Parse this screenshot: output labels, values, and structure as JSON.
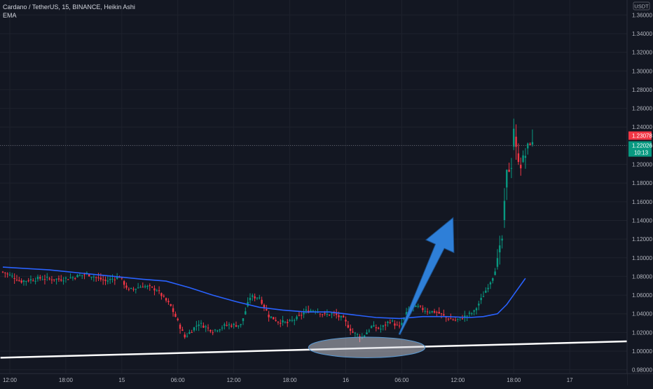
{
  "legend": {
    "symbol_line": "Cardano / TetherUS, 15, BINANCE, Heikin Ashi",
    "indicator": "EMA"
  },
  "price_scale": {
    "currency_label": "USDT",
    "ticks": [
      "0.98000",
      "1.00000",
      "1.02000",
      "1.04000",
      "1.06000",
      "1.08000",
      "1.10000",
      "1.12000",
      "1.14000",
      "1.16000",
      "1.18000",
      "1.20000",
      "1.22000",
      "1.24000",
      "1.26000",
      "1.28000",
      "1.30000",
      "1.32000",
      "1.34000",
      "1.36000"
    ],
    "ylim": [
      0.976,
      1.376
    ],
    "high_label": {
      "value": 1.23078,
      "text": "1.23078",
      "color": "#f23645"
    },
    "last_label": {
      "value": 1.22026,
      "text": "1.22026",
      "timer": "10:13",
      "color": "#089981"
    }
  },
  "time_axis": {
    "labels": [
      {
        "text": "12:00",
        "idx": 3
      },
      {
        "text": "18:00",
        "idx": 27
      },
      {
        "text": "15",
        "idx": 51
      },
      {
        "text": "06:00",
        "idx": 75
      },
      {
        "text": "12:00",
        "idx": 99
      },
      {
        "text": "18:00",
        "idx": 123
      },
      {
        "text": "16",
        "idx": 147
      },
      {
        "text": "06:00",
        "idx": 171
      },
      {
        "text": "12:00",
        "idx": 195
      },
      {
        "text": "18:00",
        "idx": 219
      },
      {
        "text": "17",
        "idx": 243
      }
    ]
  },
  "colors": {
    "background": "#131722",
    "grid": "#1e222d",
    "up": "#089981",
    "down": "#f23645",
    "ema": "#2962ff",
    "arrow": "#2e7fd8",
    "support_line": "#ffffff",
    "ellipse_fill": "#d1d4dc",
    "ellipse_stroke": "#5b9bd5"
  },
  "chart_data": {
    "type": "candlestick",
    "title": "Cardano / TetherUS, 15, BINANCE, Heikin Ashi",
    "interval_minutes": 15,
    "ylim": [
      0.976,
      1.376
    ],
    "grid": true,
    "candle_anchors": [
      {
        "i": 0,
        "v": 1.085
      },
      {
        "i": 8,
        "v": 1.075
      },
      {
        "i": 16,
        "v": 1.078
      },
      {
        "i": 24,
        "v": 1.077
      },
      {
        "i": 30,
        "v": 1.079
      },
      {
        "i": 36,
        "v": 1.083
      },
      {
        "i": 44,
        "v": 1.075
      },
      {
        "i": 50,
        "v": 1.08
      },
      {
        "i": 54,
        "v": 1.065
      },
      {
        "i": 60,
        "v": 1.07
      },
      {
        "i": 66,
        "v": 1.066
      },
      {
        "i": 72,
        "v": 1.048
      },
      {
        "i": 78,
        "v": 1.015
      },
      {
        "i": 84,
        "v": 1.03
      },
      {
        "i": 90,
        "v": 1.022
      },
      {
        "i": 96,
        "v": 1.028
      },
      {
        "i": 102,
        "v": 1.028
      },
      {
        "i": 106,
        "v": 1.058
      },
      {
        "i": 110,
        "v": 1.058
      },
      {
        "i": 114,
        "v": 1.038
      },
      {
        "i": 118,
        "v": 1.032
      },
      {
        "i": 122,
        "v": 1.03
      },
      {
        "i": 126,
        "v": 1.035
      },
      {
        "i": 130,
        "v": 1.043
      },
      {
        "i": 134,
        "v": 1.044
      },
      {
        "i": 138,
        "v": 1.039
      },
      {
        "i": 142,
        "v": 1.04
      },
      {
        "i": 146,
        "v": 1.034
      },
      {
        "i": 150,
        "v": 1.02
      },
      {
        "i": 154,
        "v": 1.015
      },
      {
        "i": 158,
        "v": 1.026
      },
      {
        "i": 162,
        "v": 1.024
      },
      {
        "i": 166,
        "v": 1.033
      },
      {
        "i": 170,
        "v": 1.025
      },
      {
        "i": 174,
        "v": 1.045
      },
      {
        "i": 178,
        "v": 1.047
      },
      {
        "i": 182,
        "v": 1.043
      },
      {
        "i": 186,
        "v": 1.042
      },
      {
        "i": 190,
        "v": 1.036
      },
      {
        "i": 194,
        "v": 1.033
      },
      {
        "i": 198,
        "v": 1.037
      },
      {
        "i": 202,
        "v": 1.042
      },
      {
        "i": 206,
        "v": 1.06
      },
      {
        "i": 210,
        "v": 1.08
      },
      {
        "i": 212,
        "v": 1.095
      },
      {
        "i": 214,
        "v": 1.12
      },
      {
        "i": 216,
        "v": 1.19
      },
      {
        "i": 218,
        "v": 1.2
      },
      {
        "i": 219,
        "v": 1.24
      },
      {
        "i": 220,
        "v": 1.215
      },
      {
        "i": 222,
        "v": 1.2
      },
      {
        "i": 224,
        "v": 1.21
      },
      {
        "i": 226,
        "v": 1.225
      },
      {
        "i": 227,
        "v": 1.22
      }
    ],
    "ema": [
      {
        "i": 0,
        "v": 1.09
      },
      {
        "i": 20,
        "v": 1.087
      },
      {
        "i": 40,
        "v": 1.082
      },
      {
        "i": 60,
        "v": 1.077
      },
      {
        "i": 70,
        "v": 1.075
      },
      {
        "i": 80,
        "v": 1.068
      },
      {
        "i": 90,
        "v": 1.06
      },
      {
        "i": 100,
        "v": 1.053
      },
      {
        "i": 110,
        "v": 1.047
      },
      {
        "i": 120,
        "v": 1.044
      },
      {
        "i": 130,
        "v": 1.042
      },
      {
        "i": 140,
        "v": 1.042
      },
      {
        "i": 150,
        "v": 1.039
      },
      {
        "i": 160,
        "v": 1.036
      },
      {
        "i": 170,
        "v": 1.035
      },
      {
        "i": 180,
        "v": 1.037
      },
      {
        "i": 190,
        "v": 1.037
      },
      {
        "i": 200,
        "v": 1.036
      },
      {
        "i": 206,
        "v": 1.037
      },
      {
        "i": 212,
        "v": 1.04
      },
      {
        "i": 216,
        "v": 1.05
      },
      {
        "i": 220,
        "v": 1.064
      },
      {
        "i": 224,
        "v": 1.078
      }
    ],
    "support_line": {
      "from": {
        "i": -1,
        "v": 0.993
      },
      "to": {
        "i": 275,
        "v": 1.011
      }
    },
    "highlight_ellipse": {
      "center": {
        "i": 156,
        "v": 1.004
      },
      "rx_bars": 25,
      "ry_value": 0.011
    },
    "arrow": {
      "from": {
        "i": 170,
        "v": 1.018
      },
      "to": {
        "i": 193,
        "v": 1.143
      }
    }
  }
}
